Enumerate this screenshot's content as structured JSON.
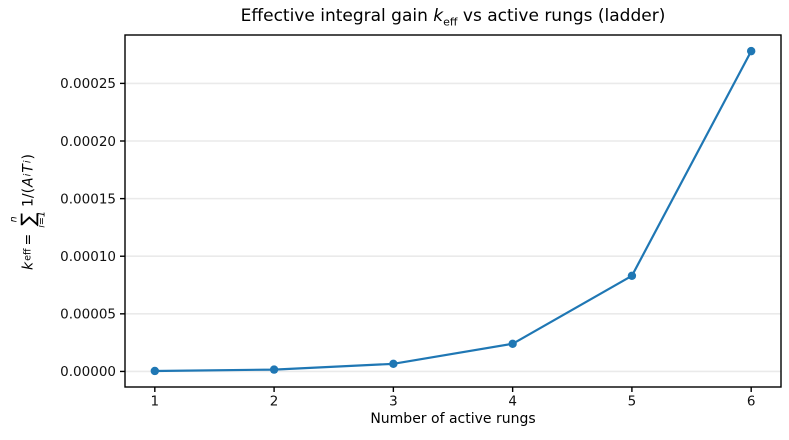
{
  "figure_title": {
    "prefix": "Effective integral gain ",
    "var": "k",
    "var_sub": "eff",
    "suffix": " vs active rungs (ladder)"
  },
  "axes": {
    "xlabel": "Number of active rungs",
    "ylabel_formula": {
      "var": "k",
      "var_sub": "eff",
      "equals": " = ",
      "sum_upper": "n",
      "sum_symbol": "∑",
      "sum_lower": "i=1",
      "expr_prefix": "1/(",
      "term_a": "A",
      "term_a_sub": "i",
      "term_t": "T",
      "term_t_sub": "i",
      "expr_suffix": ")"
    }
  },
  "chart_data": {
    "type": "line",
    "title": "Effective integral gain k_eff vs active rungs (ladder)",
    "xlabel": "Number of active rungs",
    "ylabel": "k_eff = sum_{i=1}^{n} 1/(A_i T_i)",
    "x": [
      1,
      2,
      3,
      4,
      5,
      6
    ],
    "y": [
      4e-07,
      1.6e-06,
      6.6e-06,
      2.4e-05,
      8.3e-05,
      0.000278
    ],
    "x_ticks": [
      1,
      2,
      3,
      4,
      5,
      6
    ],
    "x_tick_labels": [
      "1",
      "2",
      "3",
      "4",
      "5",
      "6"
    ],
    "y_ticks": [
      0,
      5e-05,
      0.0001,
      0.00015,
      0.0002,
      0.00025
    ],
    "y_tick_labels": [
      "0.00000",
      "0.00005",
      "0.00010",
      "0.00015",
      "0.00020",
      "0.00025"
    ],
    "xlim": [
      0.75,
      6.25
    ],
    "ylim": [
      -1.35e-05,
      0.000292
    ],
    "grid": "horizontal-only",
    "legend": "none",
    "marker": "o",
    "marker_size": 8,
    "line_width": 2.2,
    "line_color": "#1f77b4"
  },
  "colors": {
    "line": "#1f77b4",
    "grid": "#eaeaea",
    "spine": "#000000",
    "tick_text": "#111111",
    "background": "#ffffff"
  }
}
